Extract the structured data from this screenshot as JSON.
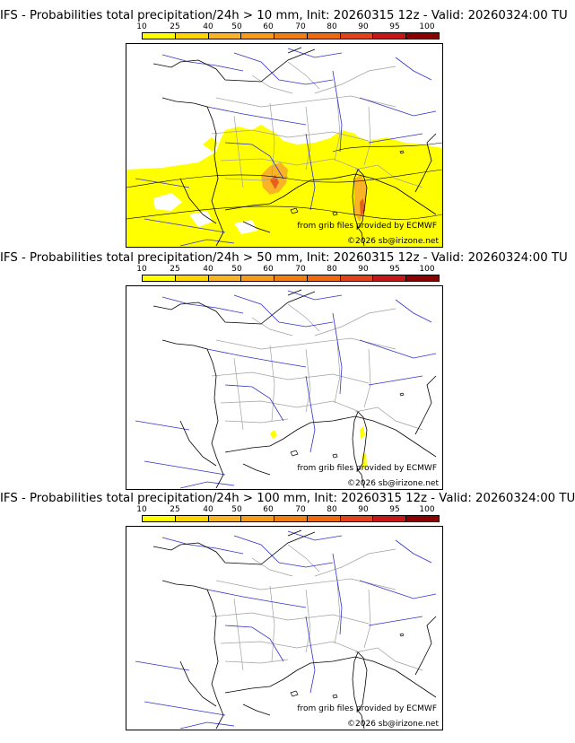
{
  "legend": {
    "ticks": [
      "10",
      "25",
      "40",
      "50",
      "60",
      "70",
      "80",
      "90",
      "95",
      "100"
    ],
    "colors": [
      "#ffff00",
      "#ffd500",
      "#f9b325",
      "#f59c1a",
      "#f07f12",
      "#ee6a10",
      "#e0431a",
      "#c41818",
      "#8b0000",
      "#5c0000"
    ]
  },
  "colors": {
    "coastline": "#000000",
    "rivers": "#3333cc",
    "borders": "#a0a0a0",
    "probability_low": "#ffff00",
    "probability_mid": "#f9b325",
    "probability_high": "#e0431a"
  },
  "credits": {
    "source": "from grib files provided by ECMWF",
    "copyright": "©2026 sb@irizone.net"
  },
  "panels": [
    {
      "id": "p10",
      "title": "IFS - Probabilities total precipitation/24h > 10 mm, Init: 20260315 12z - Valid: 20260324:00 TU"
    },
    {
      "id": "p50",
      "title": "IFS - Probabilities total precipitation/24h > 50 mm, Init: 20260315 12z - Valid: 20260324:00 TU"
    },
    {
      "id": "p100",
      "title": "IFS - Probabilities total precipitation/24h > 100 mm, Init: 20260315 12z - Valid: 20260324:00 TU"
    }
  ]
}
